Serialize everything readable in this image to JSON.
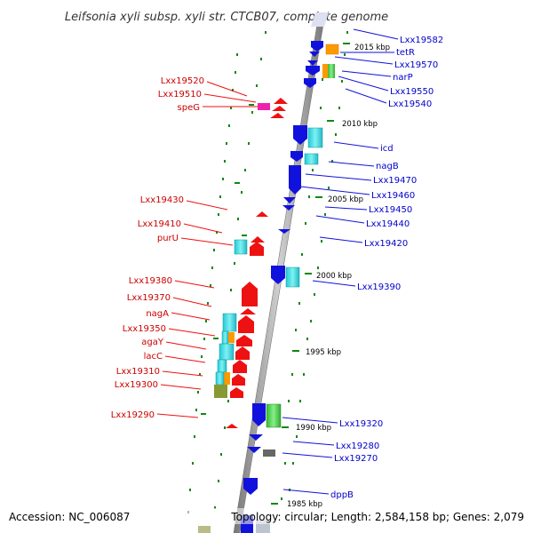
{
  "title": "Leifsonia xyli subsp. xyli str. CTCB07, complete genome",
  "footer": {
    "accession": "Accession: NC_006087",
    "topology": "Topology: circular; Length: 2,584,158 bp; Genes: 2,079"
  },
  "colors": {
    "forward_gene": "#ee1111",
    "reverse_gene": "#1111dd",
    "forward_label": "#cc0000",
    "reverse_label": "#0000cc",
    "backbone": "#888888",
    "tick": "#118811",
    "cyan": "#22dddd",
    "orange": "#ff9900",
    "magenta": "#ee22aa",
    "green": "#44cc44",
    "olive": "#889933",
    "gray": "#777777"
  },
  "scale_labels": [
    "2015 kbp",
    "2010 kbp",
    "2005 kbp",
    "2000 kbp",
    "1995 kbp",
    "1990 kbp",
    "1985 kbp"
  ],
  "left_labels": [
    "Lxx19520",
    "Lxx19510",
    "speG",
    "Lxx19430",
    "Lxx19410",
    "purU",
    "Lxx19380",
    "Lxx19370",
    "nagA",
    "Lxx19350",
    "agaY",
    "lacC",
    "Lxx19310",
    "Lxx19300",
    "Lxx19290"
  ],
  "right_labels": [
    "Lxx19582",
    "tetR",
    "Lxx19570",
    "narP",
    "Lxx19550",
    "Lxx19540",
    "icd",
    "nagB",
    "Lxx19470",
    "Lxx19460",
    "Lxx19450",
    "Lxx19440",
    "Lxx19420",
    "Lxx19390",
    "Lxx19320",
    "Lxx19280",
    "Lxx19270",
    "dppB"
  ]
}
